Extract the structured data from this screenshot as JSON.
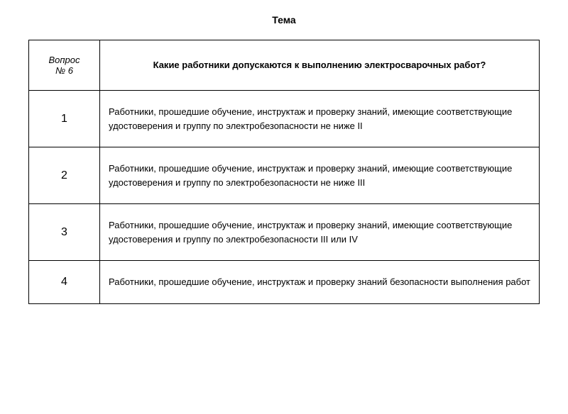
{
  "title": "Тема",
  "header": {
    "left_line1": "Вопрос",
    "left_line2": "№ 6",
    "right": "Какие работники допускаются к выполнению электросварочных работ?"
  },
  "rows": [
    {
      "num": "1",
      "text": "Работники, прошедшие обучение, инструктаж и проверку знаний, имеющие соответствующие удостоверения и группу по электробезопасности не ниже II"
    },
    {
      "num": "2",
      "text": "Работники, прошедшие обучение, инструктаж и проверку знаний, имеющие соответствующие удостоверения и группу по электробезопасности не ниже III"
    },
    {
      "num": "3",
      "text": "Работники, прошедшие обучение, инструктаж и проверку знаний, имеющие соответствующие удостоверения и группу по электробезопасности III или IV"
    },
    {
      "num": "4",
      "text": "Работники, прошедшие обучение, инструктаж и проверку знаний безопасности выполнения работ"
    }
  ]
}
